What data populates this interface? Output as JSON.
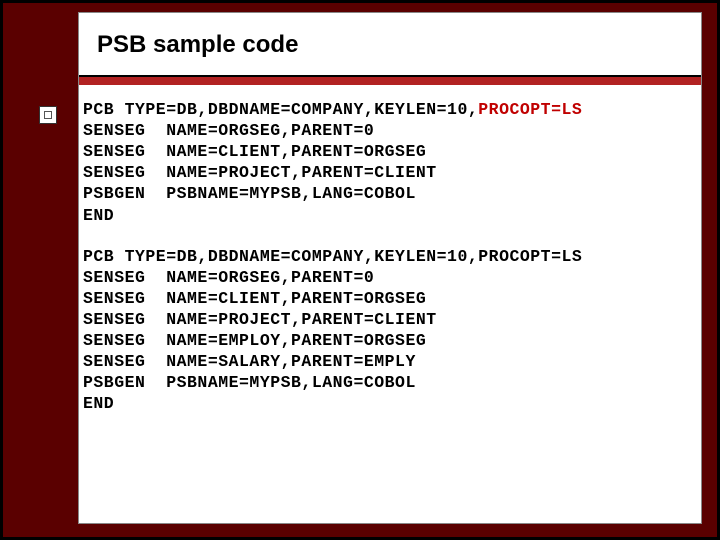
{
  "title": "PSB sample code",
  "colors": {
    "page_bg": "#5a0000",
    "panel_bg": "#ffffff",
    "accent_red": "#b22222",
    "highlight_red": "#c00000",
    "text": "#000000"
  },
  "typography": {
    "title_fontsize": 24,
    "title_weight": "bold",
    "code_font": "Courier New",
    "code_fontsize": 16.5,
    "code_weight": "bold"
  },
  "code_block_1": {
    "lines": [
      {
        "text": "PCB TYPE=DB,DBDNAME=COMPANY,KEYLEN=10,",
        "tail": "PROCOPT=LS",
        "tail_highlight": true
      },
      {
        "text": "SENSEG  NAME=ORGSEG,PARENT=0"
      },
      {
        "text": "SENSEG  NAME=CLIENT,PARENT=ORGSEG"
      },
      {
        "text": "SENSEG  NAME=PROJECT,PARENT=CLIENT"
      },
      {
        "text": "PSBGEN  PSBNAME=MYPSB,LANG=COBOL"
      },
      {
        "text": "END"
      }
    ]
  },
  "code_block_2": {
    "lines": [
      {
        "text": "PCB TYPE=DB,DBDNAME=COMPANY,KEYLEN=10,PROCOPT=LS"
      },
      {
        "text": "SENSEG  NAME=ORGSEG,PARENT=0"
      },
      {
        "text": "SENSEG  NAME=CLIENT,PARENT=ORGSEG"
      },
      {
        "text": "SENSEG  NAME=PROJECT,PARENT=CLIENT"
      },
      {
        "text": "SENSEG  NAME=EMPLOY,PARENT=ORGSEG"
      },
      {
        "text": "SENSEG  NAME=SALARY,PARENT=EMPLY"
      },
      {
        "text": "PSBGEN  PSBNAME=MYPSB,LANG=COBOL"
      },
      {
        "text": "END"
      }
    ]
  }
}
